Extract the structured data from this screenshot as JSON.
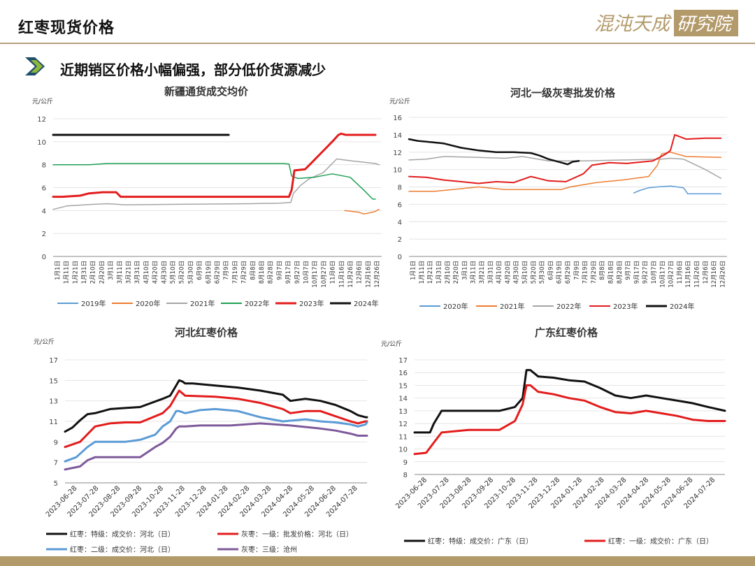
{
  "header": {
    "title": "红枣现货价格",
    "logo_text": "混沌天成研究院"
  },
  "subtitle": "近期销区价格小幅偏强，部分低价货源减少",
  "colors": {
    "accent": "#b39a6a",
    "chevron_dark": "#1f4e6b",
    "chevron_light": "#8fb83a"
  },
  "chart_data": [
    {
      "type": "line",
      "title": "新疆通货成交均价",
      "unit": "元/公斤",
      "ylim": [
        0,
        12
      ],
      "yticks": [
        0,
        2,
        4,
        6,
        8,
        10,
        12
      ],
      "xlim": [
        0,
        365
      ],
      "categories": [
        "1月1日",
        "1月11日",
        "1月21日",
        "1月31日",
        "2月10日",
        "2月20日",
        "3月1日",
        "3月11日",
        "3月21日",
        "3月31日",
        "4月10日",
        "4月20日",
        "4月30日",
        "5月10日",
        "5月20日",
        "5月30日",
        "6月9日",
        "6月19日",
        "6月29日",
        "7月9日",
        "7月19日",
        "7月29日",
        "8月8日",
        "8月18日",
        "8月28日",
        "9月7日",
        "9月17日",
        "9月27日",
        "10月7日",
        "10月17日",
        "10月27日",
        "11月6日",
        "11月16日",
        "11月26日",
        "12月6日",
        "12月16日",
        "12月26日"
      ],
      "series": [
        {
          "name": "2019年",
          "color": "#5b9bd5",
          "width": 1.5,
          "x": [],
          "y": []
        },
        {
          "name": "2020年",
          "color": "#ed7d31",
          "width": 1.5,
          "x": [
            324,
            340,
            345,
            357,
            362
          ],
          "y": [
            4.0,
            3.85,
            3.7,
            3.9,
            4.1
          ]
        },
        {
          "name": "2021年",
          "color": "#a5a5a5",
          "width": 1.5,
          "x": [
            0,
            15,
            35,
            60,
            80,
            220,
            252,
            264,
            267,
            275,
            285,
            300,
            315,
            335,
            358,
            362
          ],
          "y": [
            4.1,
            4.4,
            4.5,
            4.6,
            4.5,
            4.6,
            4.65,
            4.7,
            5.5,
            6.2,
            6.8,
            7.3,
            8.5,
            8.3,
            8.1,
            8.0
          ]
        },
        {
          "name": "2022年",
          "color": "#1fa055",
          "width": 1.5,
          "x": [
            0,
            40,
            60,
            240,
            255,
            262,
            265,
            272,
            290,
            310,
            330,
            345,
            355,
            358
          ],
          "y": [
            8.0,
            8.0,
            8.1,
            8.1,
            8.1,
            8.05,
            7.0,
            6.8,
            6.9,
            7.2,
            6.9,
            5.8,
            5.0,
            5.0
          ]
        },
        {
          "name": "2023年",
          "color": "#e31c1c",
          "width": 3,
          "x": [
            0,
            10,
            30,
            40,
            55,
            70,
            75,
            85,
            100,
            160,
            200,
            262,
            265,
            268,
            280,
            285,
            300,
            310,
            317,
            320,
            325,
            358
          ],
          "y": [
            5.2,
            5.2,
            5.3,
            5.5,
            5.6,
            5.6,
            5.2,
            5.2,
            5.2,
            5.2,
            5.2,
            5.2,
            5.8,
            7.5,
            7.6,
            8.0,
            9.2,
            10.0,
            10.6,
            10.7,
            10.6,
            10.6
          ]
        },
        {
          "name": "2024年",
          "color": "#111111",
          "width": 3,
          "x": [
            0,
            195
          ],
          "y": [
            10.6,
            10.6
          ]
        }
      ]
    },
    {
      "type": "line",
      "title": "河北一级灰枣批发价格",
      "unit": "元/公斤",
      "ylim": [
        0,
        16
      ],
      "yticks": [
        0,
        2,
        4,
        6,
        8,
        10,
        12,
        14,
        16
      ],
      "xlim": [
        0,
        365
      ],
      "categories": [
        "1月1日",
        "1月11日",
        "1月21日",
        "1月31日",
        "2月10日",
        "2月20日",
        "3月1日",
        "3月11日",
        "3月21日",
        "3月31日",
        "4月10日",
        "4月20日",
        "4月30日",
        "5月10日",
        "5月20日",
        "5月30日",
        "6月9日",
        "6月19日",
        "6月29日",
        "7月9日",
        "7月19日",
        "7月29日",
        "8月8日",
        "8月18日",
        "8月28日",
        "9月7日",
        "9月17日",
        "9月27日",
        "10月7日",
        "10月17日",
        "10月27日",
        "11月6日",
        "11月16日",
        "11月26日",
        "12月6日",
        "12月16日",
        "12月26日"
      ],
      "series": [
        {
          "name": "2020年",
          "color": "#5b9bd5",
          "width": 1.5,
          "x": [
            258,
            265,
            275,
            285,
            300,
            315,
            320,
            358
          ],
          "y": [
            7.3,
            7.6,
            7.9,
            8.0,
            8.1,
            7.9,
            7.2,
            7.2
          ]
        },
        {
          "name": "2021年",
          "color": "#ed7d31",
          "width": 1.5,
          "x": [
            0,
            30,
            80,
            110,
            175,
            185,
            215,
            245,
            275,
            285,
            290,
            300,
            318,
            358
          ],
          "y": [
            7.5,
            7.5,
            8.0,
            7.7,
            7.7,
            8.0,
            8.5,
            8.8,
            9.2,
            10.5,
            11.8,
            12.0,
            11.5,
            11.4
          ]
        },
        {
          "name": "2022年",
          "color": "#a5a5a5",
          "width": 1.5,
          "x": [
            0,
            20,
            40,
            80,
            110,
            130,
            160,
            200,
            250,
            290,
            300,
            315,
            340,
            358
          ],
          "y": [
            11.1,
            11.2,
            11.5,
            11.4,
            11.3,
            11.5,
            11.0,
            11.0,
            11.1,
            11.2,
            11.3,
            11.2,
            10.0,
            9.0
          ]
        },
        {
          "name": "2023年",
          "color": "#e31c1c",
          "width": 2,
          "x": [
            0,
            20,
            40,
            60,
            80,
            100,
            120,
            140,
            160,
            180,
            200,
            210,
            230,
            250,
            280,
            295,
            300,
            305,
            318,
            340,
            358
          ],
          "y": [
            9.2,
            9.1,
            8.8,
            8.6,
            8.4,
            8.6,
            8.5,
            9.2,
            8.7,
            8.6,
            9.5,
            10.5,
            10.8,
            10.7,
            11.0,
            11.8,
            12.2,
            14.0,
            13.5,
            13.6,
            13.6
          ]
        },
        {
          "name": "2024年",
          "color": "#111111",
          "width": 2.5,
          "x": [
            0,
            10,
            20,
            40,
            60,
            80,
            100,
            120,
            140,
            150,
            160,
            175,
            182,
            188,
            195
          ],
          "y": [
            13.5,
            13.3,
            13.2,
            13.0,
            12.5,
            12.2,
            12.0,
            12.0,
            11.9,
            11.6,
            11.2,
            10.8,
            10.6,
            10.9,
            11.0
          ]
        }
      ]
    },
    {
      "type": "line",
      "title": "河北红枣价格",
      "unit": "元/公斤",
      "ylim": [
        5,
        17
      ],
      "yticks": [
        5,
        7,
        9,
        11,
        13,
        15,
        17
      ],
      "xlim": [
        0,
        402
      ],
      "categories": [
        "2023-06-28",
        "2023-07-28",
        "2023-08-28",
        "2023-09-28",
        "2023-10-28",
        "2023-11-28",
        "2023-12-28",
        "2024-01-28",
        "2024-02-28",
        "2024-03-28",
        "2024-04-28",
        "2024-05-28",
        "2024-06-28",
        "2024-07-28"
      ],
      "series": [
        {
          "name": "红枣：特级：成交价：河北（日）",
          "color": "#111111",
          "width": 3,
          "x": [
            0,
            10,
            20,
            30,
            40,
            60,
            80,
            100,
            130,
            140,
            148,
            152,
            156,
            160,
            170,
            200,
            230,
            260,
            290,
            300,
            320,
            340,
            360,
            380,
            390,
            400,
            402
          ],
          "y": [
            10.0,
            10.4,
            11.1,
            11.7,
            11.8,
            12.2,
            12.3,
            12.4,
            13.2,
            13.5,
            14.5,
            15.0,
            14.9,
            14.7,
            14.7,
            14.5,
            14.3,
            14.0,
            13.6,
            13.0,
            13.2,
            13.0,
            12.6,
            12.0,
            11.6,
            11.4,
            11.4
          ]
        },
        {
          "name": "灰枣：一级：批发价格：河北（日）",
          "color": "#e31c1c",
          "width": 3,
          "x": [
            0,
            20,
            40,
            60,
            80,
            100,
            130,
            140,
            148,
            152,
            160,
            200,
            230,
            260,
            290,
            300,
            320,
            340,
            360,
            380,
            390,
            400,
            402
          ],
          "y": [
            8.5,
            9.0,
            10.5,
            10.8,
            10.9,
            10.9,
            11.8,
            12.5,
            13.5,
            14.0,
            13.5,
            13.4,
            13.2,
            12.8,
            12.2,
            11.8,
            12.0,
            12.0,
            11.5,
            11.0,
            10.8,
            11.0,
            11.0
          ]
        },
        {
          "name": "红枣：二级：成交价：河北（日）",
          "color": "#5b9bd5",
          "width": 3,
          "x": [
            0,
            15,
            30,
            40,
            60,
            80,
            100,
            120,
            130,
            140,
            148,
            152,
            160,
            180,
            200,
            230,
            260,
            290,
            320,
            340,
            360,
            380,
            390,
            400,
            402
          ],
          "y": [
            7.1,
            7.5,
            8.5,
            9.0,
            9.0,
            9.0,
            9.2,
            9.7,
            10.5,
            11.0,
            12.0,
            12.0,
            11.8,
            12.1,
            12.2,
            12.0,
            11.4,
            11.0,
            11.2,
            11.0,
            10.9,
            10.7,
            10.5,
            10.7,
            10.9
          ]
        },
        {
          "name": "灰枣：三级：沧州",
          "color": "#7e5a9b",
          "width": 3,
          "x": [
            0,
            20,
            30,
            40,
            60,
            80,
            100,
            120,
            130,
            140,
            148,
            152,
            160,
            180,
            220,
            260,
            300,
            340,
            360,
            380,
            390,
            400,
            402
          ],
          "y": [
            6.3,
            6.6,
            7.2,
            7.5,
            7.5,
            7.5,
            7.5,
            8.5,
            8.9,
            9.5,
            10.3,
            10.5,
            10.5,
            10.6,
            10.6,
            10.8,
            10.6,
            10.3,
            10.1,
            9.8,
            9.6,
            9.6,
            9.6
          ]
        }
      ]
    },
    {
      "type": "line",
      "title": "广东红枣价格",
      "unit": "元/公斤",
      "ylim": [
        8,
        17
      ],
      "yticks": [
        8,
        9,
        10,
        11,
        12,
        13,
        14,
        15,
        16,
        17
      ],
      "xlim": [
        0,
        402
      ],
      "categories": [
        "2023-06-28",
        "2023-07-28",
        "2023-08-28",
        "2023-09-28",
        "2023-10-28",
        "2023-11-28",
        "2023-12-28",
        "2024-01-28",
        "2024-02-28",
        "2024-03-28",
        "2024-04-28",
        "2024-05-28",
        "2024-06-28",
        "2024-07-28"
      ],
      "series": [
        {
          "name": "红枣：特级：成交价：广东（日）",
          "color": "#111111",
          "width": 3,
          "x": [
            0,
            20,
            25,
            35,
            70,
            110,
            130,
            140,
            145,
            150,
            160,
            180,
            200,
            220,
            240,
            260,
            280,
            300,
            320,
            350,
            360,
            380,
            402
          ],
          "y": [
            11.3,
            11.3,
            12.0,
            13.0,
            13.0,
            13.0,
            13.3,
            14.0,
            16.2,
            16.2,
            15.7,
            15.6,
            15.4,
            15.3,
            14.8,
            14.2,
            14.0,
            14.2,
            14.0,
            13.7,
            13.6,
            13.3,
            13.0
          ]
        },
        {
          "name": "红枣：一级：成交价：广东（日）",
          "color": "#e31c1c",
          "width": 3,
          "x": [
            0,
            15,
            25,
            35,
            70,
            110,
            130,
            140,
            145,
            150,
            160,
            180,
            200,
            220,
            240,
            260,
            280,
            300,
            320,
            340,
            360,
            380,
            402
          ],
          "y": [
            9.6,
            9.7,
            10.5,
            11.3,
            11.5,
            11.5,
            12.2,
            13.5,
            15.0,
            15.0,
            14.5,
            14.3,
            14.0,
            13.8,
            13.3,
            12.9,
            12.8,
            13.0,
            12.8,
            12.6,
            12.3,
            12.2,
            12.2
          ]
        }
      ]
    }
  ]
}
